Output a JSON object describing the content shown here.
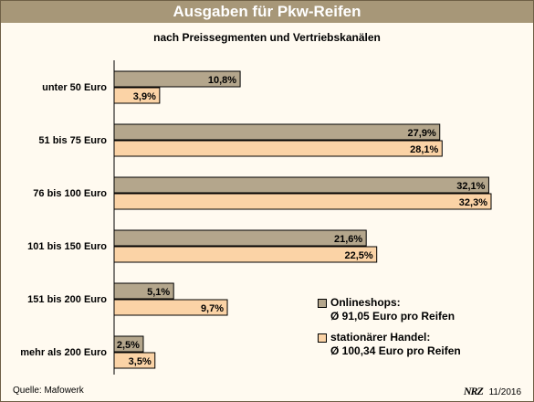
{
  "header": {
    "title": "Ausgaben für Pkw-Reifen",
    "subtitle": "nach Preissegmenten und Vertriebskanälen"
  },
  "chart_data": {
    "type": "bar",
    "orientation": "horizontal",
    "title": "Ausgaben für Pkw-Reifen",
    "subtitle": "nach Preissegmenten und Vertriebskanälen",
    "categories": [
      "unter 50 Euro",
      "51 bis 75 Euro",
      "76 bis 100 Euro",
      "101 bis 150 Euro",
      "151 bis 200 Euro",
      "mehr als 200 Euro"
    ],
    "series": [
      {
        "name": "Onlineshops:",
        "description": "Ø 91,05 Euro pro Reifen",
        "color": "#b4a68c",
        "values": [
          10.8,
          27.9,
          32.1,
          21.6,
          5.1,
          2.5
        ],
        "labels": [
          "10,8%",
          "27,9%",
          "32,1%",
          "21,6%",
          "5,1%",
          "2,5%"
        ]
      },
      {
        "name": "stationärer Handel:",
        "description": "Ø 100,34 Euro pro Reifen",
        "color": "#fbd3a6",
        "values": [
          3.9,
          28.1,
          32.3,
          22.5,
          9.7,
          3.5
        ],
        "labels": [
          "3,9%",
          "28,1%",
          "32,3%",
          "22,5%",
          "9,7%",
          "3,5%"
        ]
      }
    ],
    "unit": "%",
    "xlim": [
      0,
      32.3
    ],
    "grid": false,
    "legend_position": "bottom-right"
  },
  "footer": {
    "source": "Quelle: Mafowerk",
    "logo": "NRZ",
    "date": "11/2016"
  }
}
